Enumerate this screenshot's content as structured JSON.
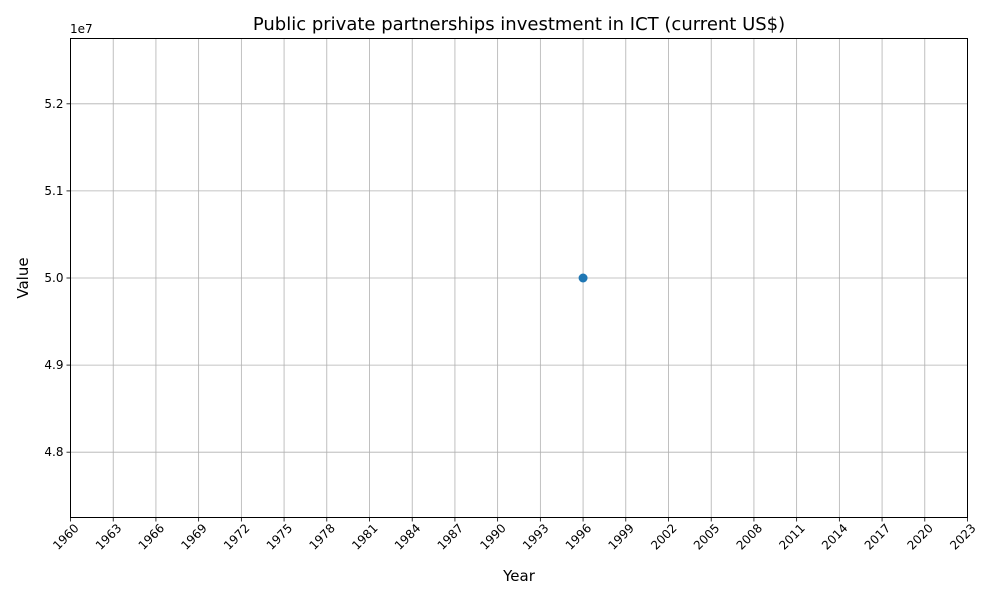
{
  "chart_data": {
    "type": "line",
    "title": "Public private partnerships investment in ICT (current US$)",
    "xlabel": "Year",
    "ylabel": "Value",
    "y_offset_label": "1e7",
    "x_ticks": [
      "1960",
      "1963",
      "1966",
      "1969",
      "1972",
      "1975",
      "1978",
      "1981",
      "1984",
      "1987",
      "1990",
      "1993",
      "1996",
      "1999",
      "2002",
      "2005",
      "2008",
      "2011",
      "2014",
      "2017",
      "2020",
      "2023"
    ],
    "y_ticks": [
      {
        "value": 48000000,
        "label": "4.8"
      },
      {
        "value": 49000000,
        "label": "4.9"
      },
      {
        "value": 50000000,
        "label": "5.0"
      },
      {
        "value": 51000000,
        "label": "5.1"
      },
      {
        "value": 52000000,
        "label": "5.2"
      }
    ],
    "xlim": [
      1960,
      2023
    ],
    "ylim": [
      47250000,
      52750000
    ],
    "grid": true,
    "series": [
      {
        "color": "#1f77b4",
        "x": [
          1996
        ],
        "y": [
          50000000
        ]
      }
    ]
  }
}
